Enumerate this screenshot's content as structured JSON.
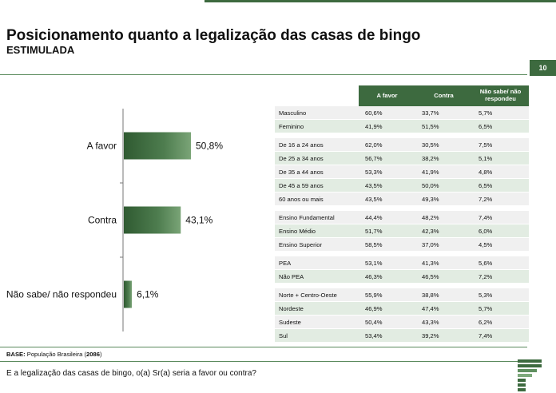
{
  "title": "Posicionamento quanto a legalização das casas de bingo",
  "subtitle": "ESTIMULADA",
  "page_number": "10",
  "brand_color": "#3d6a3f",
  "chart_data": {
    "type": "bar",
    "orientation": "horizontal",
    "categories": [
      "A favor",
      "Contra",
      "Não sabe/ não respondeu"
    ],
    "values": [
      50.8,
      43.1,
      6.1
    ],
    "value_labels": [
      "50,8%",
      "43,1%",
      "6,1%"
    ],
    "unit": "%",
    "xlim": [
      0,
      60
    ],
    "grid": false
  },
  "table": {
    "headers": [
      "",
      "A favor",
      "Contra",
      "Não sabe/ não respondeu"
    ],
    "groups": [
      [
        [
          "Masculino",
          "60,6%",
          "33,7%",
          "5,7%"
        ],
        [
          "Feminino",
          "41,9%",
          "51,5%",
          "6,5%"
        ]
      ],
      [
        [
          "De 16 a 24 anos",
          "62,0%",
          "30,5%",
          "7,5%"
        ],
        [
          "De 25 a 34 anos",
          "56,7%",
          "38,2%",
          "5,1%"
        ],
        [
          "De 35 a 44 anos",
          "53,3%",
          "41,9%",
          "4,8%"
        ],
        [
          "De 45 a 59 anos",
          "43,5%",
          "50,0%",
          "6,5%"
        ],
        [
          "60 anos ou mais",
          "43,5%",
          "49,3%",
          "7,2%"
        ]
      ],
      [
        [
          "Ensino Fundamental",
          "44,4%",
          "48,2%",
          "7,4%"
        ],
        [
          "Ensino Médio",
          "51,7%",
          "42,3%",
          "6,0%"
        ],
        [
          "Ensino Superior",
          "58,5%",
          "37,0%",
          "4,5%"
        ]
      ],
      [
        [
          " PEA",
          "53,1%",
          "41,3%",
          "5,6%"
        ],
        [
          " Não PEA",
          "46,3%",
          "46,5%",
          "7,2%"
        ]
      ],
      [
        [
          "Norte + Centro-Oeste",
          "55,9%",
          "38,8%",
          "5,3%"
        ],
        [
          "Nordeste",
          "46,9%",
          "47,4%",
          "5,7%"
        ],
        [
          "Sudeste",
          "50,4%",
          "43,3%",
          "6,2%"
        ],
        [
          "Sul",
          "53,4%",
          "39,2%",
          "7,4%"
        ]
      ]
    ]
  },
  "base": {
    "label": "BASE:",
    "text": " População Brasileira (",
    "count": "2086",
    "close": ")"
  },
  "question": "E a legalização das casas de bingo, o(a) Sr(a) seria a favor ou contra?"
}
